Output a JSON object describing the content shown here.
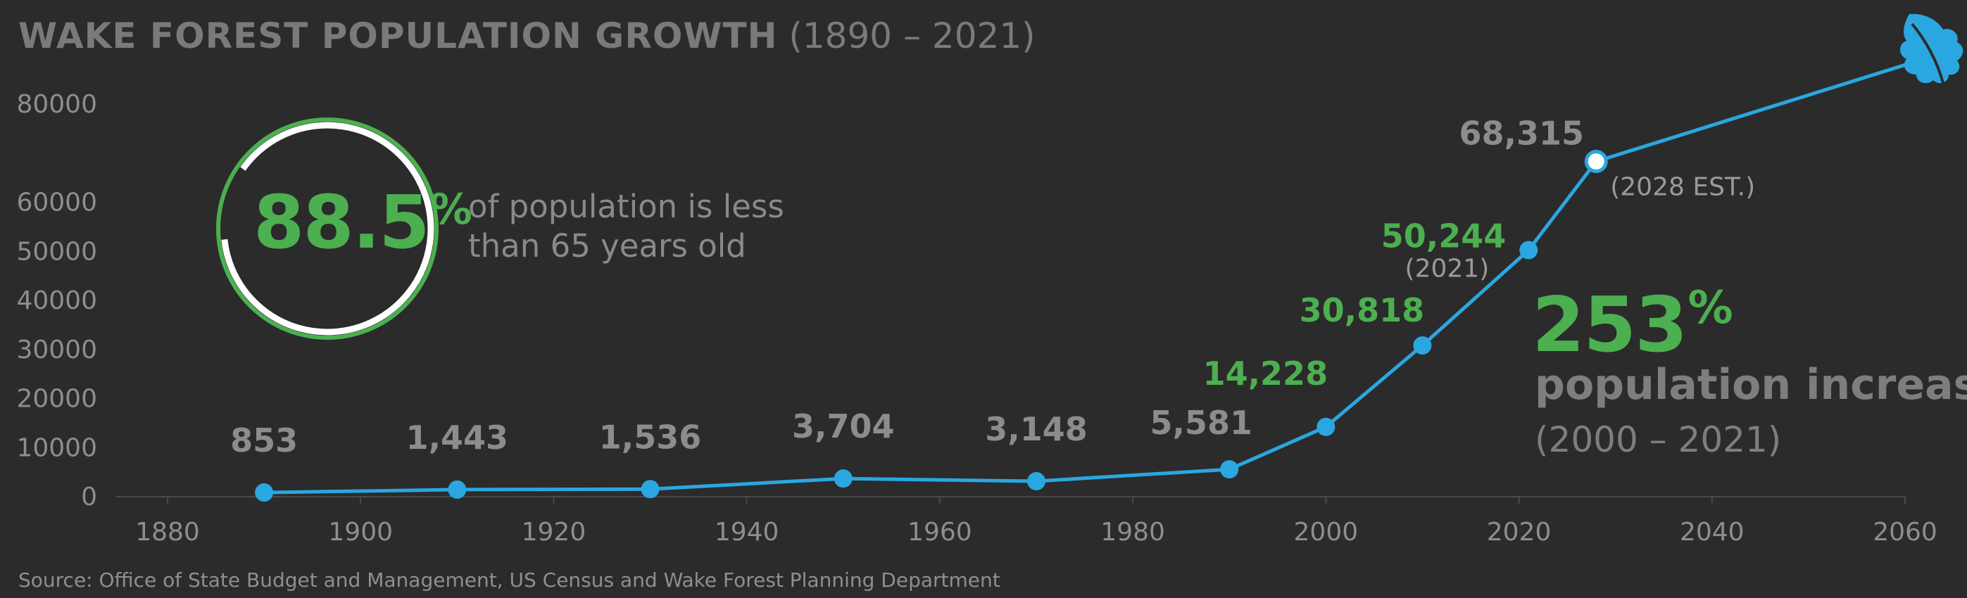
{
  "title": {
    "main": "WAKE FOREST POPULATION GROWTH",
    "range": "(1890 – 2021)"
  },
  "source": "Source: Office of State Budget and Management, US Census and Wake Forest Planning Department",
  "stat": {
    "value": "88.5",
    "percent_sign": "%",
    "label": "of population is less than 65 years old",
    "fraction": 0.885,
    "ring_color": "#4caf50"
  },
  "increase": {
    "value": "253",
    "percent_sign": "%",
    "label": "population increase",
    "range": "(2000 – 2021)"
  },
  "colors": {
    "background": "#2b2b2b",
    "line": "#2aa7e0",
    "highlight": "#4caf50",
    "muted": "#8c8c8c"
  },
  "icon": "oak-leaf-icon",
  "chart_data": {
    "type": "line",
    "title": "WAKE FOREST POPULATION GROWTH (1890 – 2021)",
    "xlabel": "",
    "ylabel": "",
    "xlim": [
      1880,
      2060
    ],
    "ylim": [
      0,
      80000
    ],
    "x_ticks": [
      1880,
      1900,
      1920,
      1940,
      1960,
      1980,
      2000,
      2020,
      2040,
      2060
    ],
    "y_ticks": [
      0,
      10000,
      20000,
      30000,
      40000,
      50000,
      60000,
      80000
    ],
    "grid": false,
    "series": [
      {
        "points": [
          {
            "x": 1890,
            "y": 853,
            "label": "853",
            "emphasis": "muted"
          },
          {
            "x": 1910,
            "y": 1443,
            "label": "1,443",
            "emphasis": "muted"
          },
          {
            "x": 1930,
            "y": 1536,
            "label": "1,536",
            "emphasis": "muted"
          },
          {
            "x": 1950,
            "y": 3704,
            "label": "3,704",
            "emphasis": "muted"
          },
          {
            "x": 1970,
            "y": 3148,
            "label": "3,148",
            "emphasis": "muted"
          },
          {
            "x": 1990,
            "y": 5581,
            "label": "5,581",
            "emphasis": "muted"
          },
          {
            "x": 2000,
            "y": 14228,
            "label": "14,228",
            "emphasis": "highlight"
          },
          {
            "x": 2010,
            "y": 30818,
            "label": "30,818",
            "emphasis": "highlight"
          },
          {
            "x": 2021,
            "y": 50244,
            "label": "50,244",
            "note": "(2021)",
            "emphasis": "highlight"
          },
          {
            "x": 2028,
            "y": 68315,
            "label": "68,315",
            "note": "(2028 EST.)",
            "emphasis": "muted",
            "estimate": true
          }
        ]
      }
    ]
  }
}
